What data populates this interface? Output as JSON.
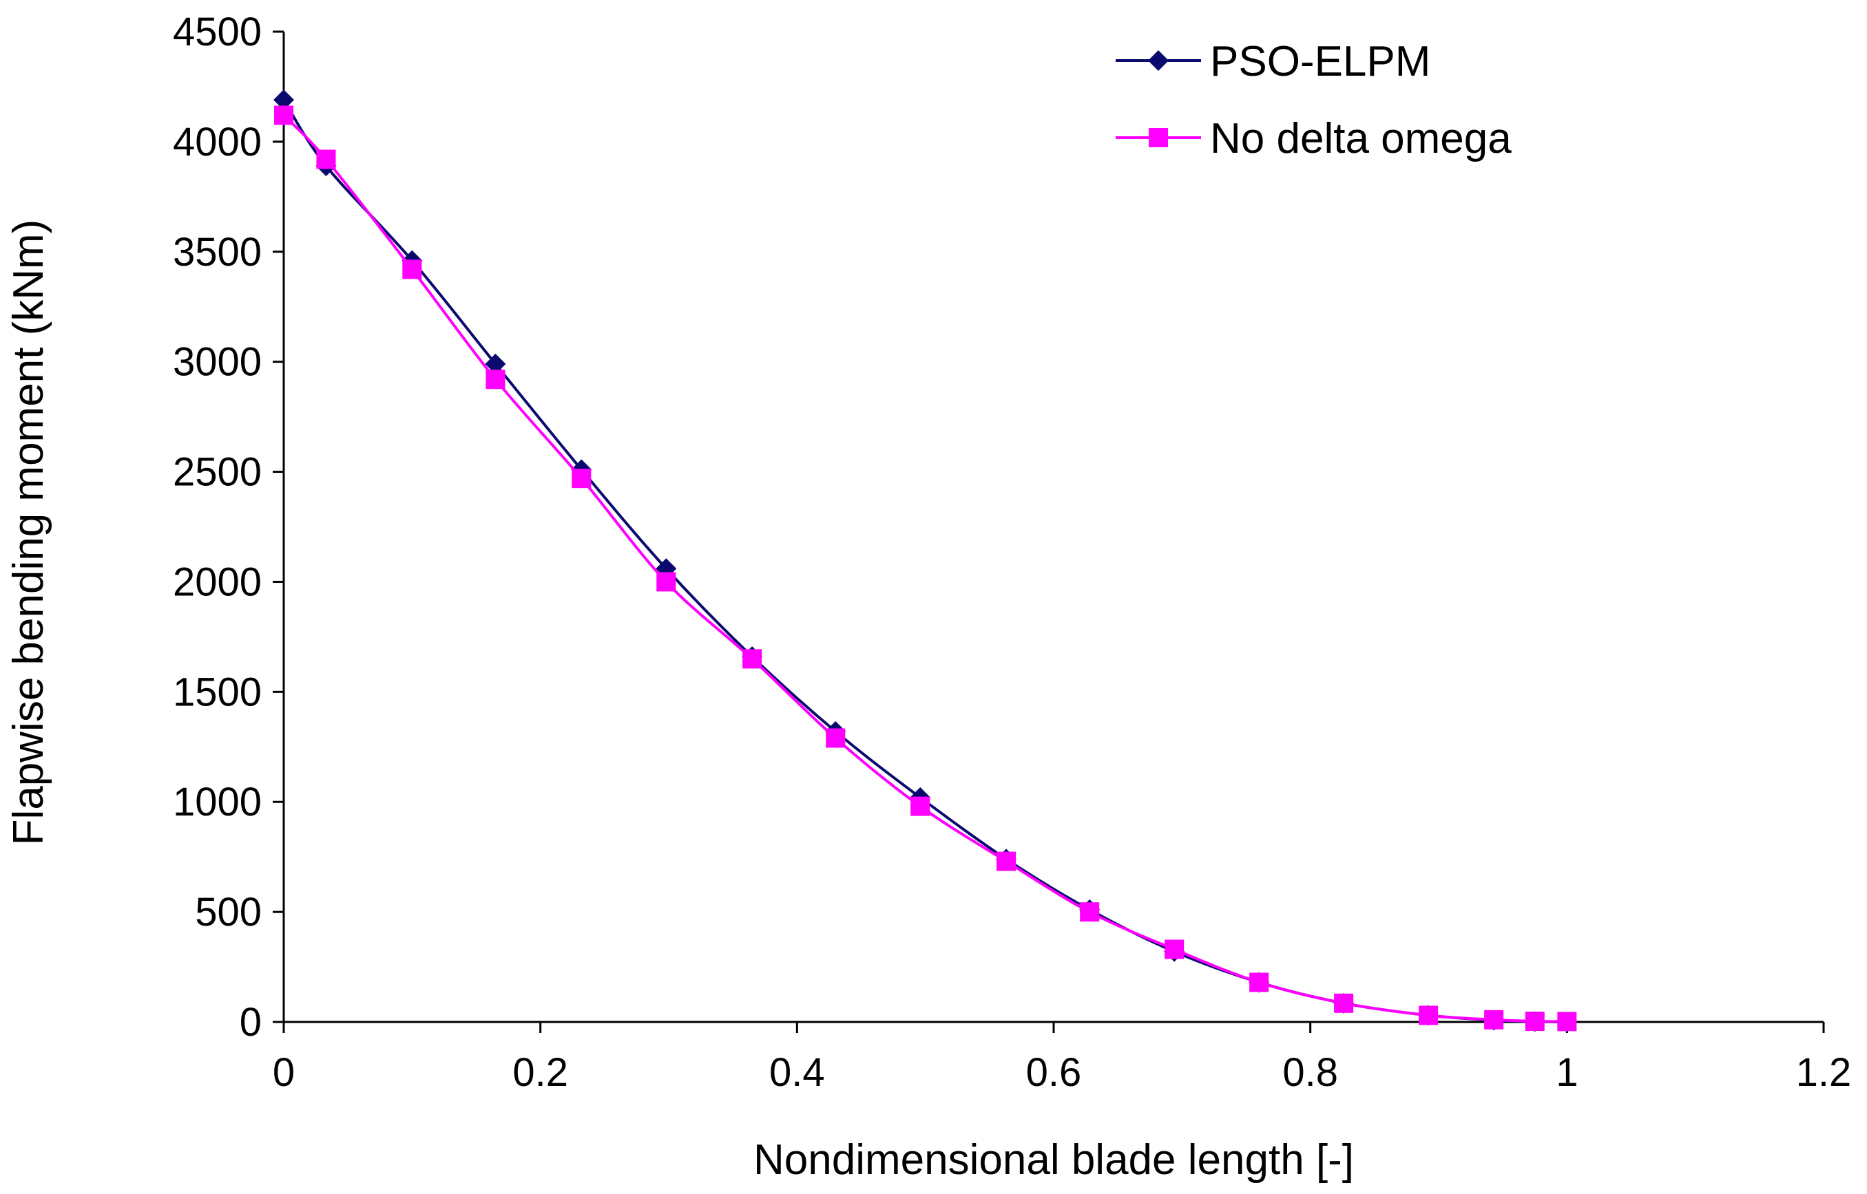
{
  "chart_data": {
    "type": "line",
    "title": "",
    "xlabel": "Nondimensional blade length [-]",
    "ylabel": "Flapwise bending moment (kNm)",
    "xlim": [
      0,
      1.2
    ],
    "ylim": [
      0,
      4500
    ],
    "xticks": [
      0,
      0.2,
      0.4,
      0.6,
      0.8,
      1.0,
      1.2
    ],
    "xtick_labels": [
      "0",
      "0.2",
      "0.4",
      "0.6",
      "0.8",
      "1",
      "1.2"
    ],
    "yticks": [
      0,
      500,
      1000,
      1500,
      2000,
      2500,
      3000,
      3500,
      4000,
      4500
    ],
    "ytick_labels": [
      "0",
      "500",
      "1000",
      "1500",
      "2000",
      "2500",
      "3000",
      "3500",
      "4000",
      "4500"
    ],
    "grid": false,
    "legend_position": "top-right",
    "series": [
      {
        "name": "PSO-ELPM",
        "color": "#0a0a6e",
        "marker": "diamond",
        "x": [
          0,
          0.033,
          0.1,
          0.165,
          0.232,
          0.298,
          0.365,
          0.43,
          0.496,
          0.563,
          0.628,
          0.694,
          0.76,
          0.826,
          0.892,
          0.943,
          0.975,
          1.0
        ],
        "y": [
          4190,
          3890,
          3460,
          2990,
          2510,
          2060,
          1660,
          1320,
          1020,
          740,
          510,
          320,
          180,
          85,
          30,
          8,
          2,
          0
        ]
      },
      {
        "name": "No delta omega",
        "color": "#ff00ff",
        "marker": "square",
        "x": [
          0,
          0.033,
          0.1,
          0.165,
          0.232,
          0.298,
          0.365,
          0.43,
          0.496,
          0.563,
          0.628,
          0.694,
          0.76,
          0.826,
          0.892,
          0.943,
          0.975,
          1.0
        ],
        "y": [
          4120,
          3920,
          3420,
          2920,
          2470,
          2000,
          1650,
          1290,
          980,
          730,
          500,
          330,
          180,
          85,
          30,
          10,
          3,
          2
        ]
      }
    ]
  }
}
